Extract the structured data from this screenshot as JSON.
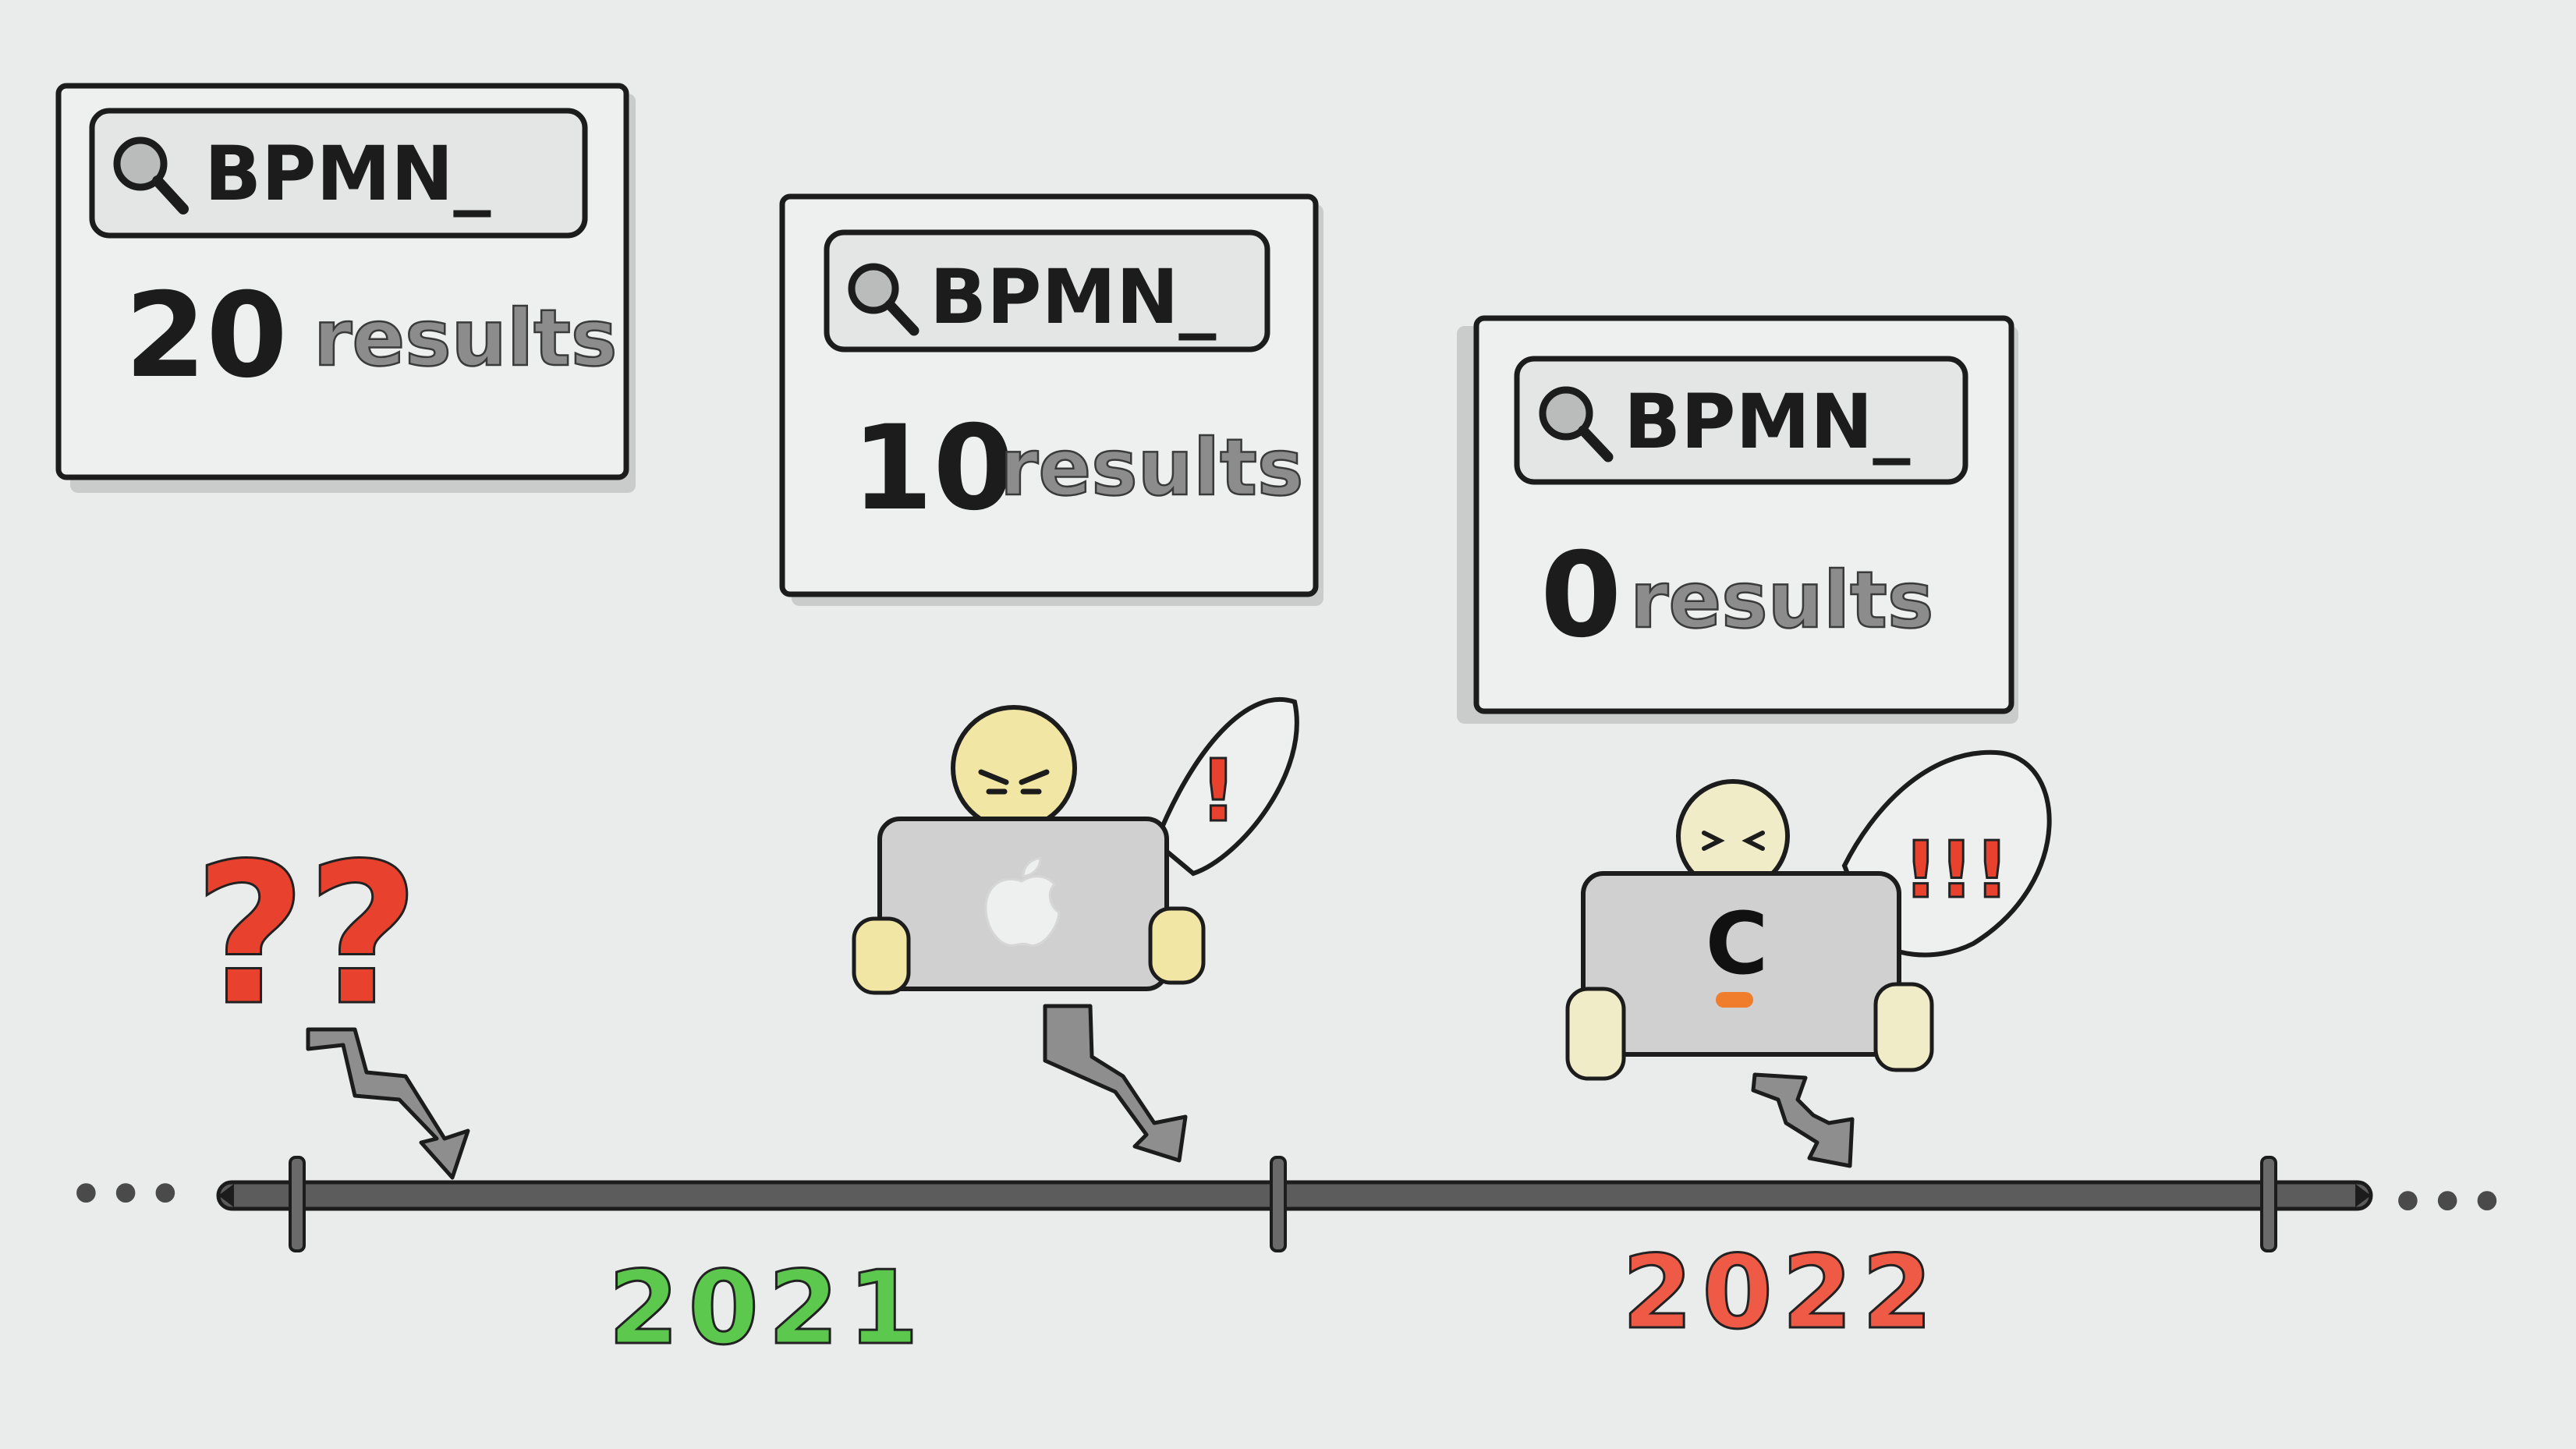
{
  "colors": {
    "paper": "#e9ecea",
    "ink": "#1c1c1c",
    "results_grey": "#8c8c8c",
    "box_shadow": "#c9ccca",
    "timeline": "#5c5c5c",
    "arrow_grey": "#8e8e8e",
    "year_2021": "#5cc94e",
    "year_2022": "#ee5a45",
    "alarm_red": "#e8412d",
    "skin": "#f2e6a4",
    "skin_pale": "#f1ecc8",
    "laptop": "#cfd0cf",
    "cursor_orange": "#ef7d2c"
  },
  "search_cards": [
    {
      "query": "BPMN_",
      "count": "20",
      "label": "results"
    },
    {
      "query": "BPMN_",
      "count": "10",
      "label": "results"
    },
    {
      "query": "BPMN_",
      "count": "0",
      "label": "results"
    }
  ],
  "timeline": {
    "ellipsis_left": "•••",
    "ellipsis_right": "•••",
    "years": [
      "2021",
      "2022"
    ]
  },
  "marks": {
    "question": "??",
    "exclaim_one": "!",
    "exclaim_three": "!!!"
  },
  "laptops": [
    {
      "logo_icon": "apple-logo-icon"
    },
    {
      "logo_icon": "c-logo-icon",
      "logo_text": "C"
    }
  ]
}
